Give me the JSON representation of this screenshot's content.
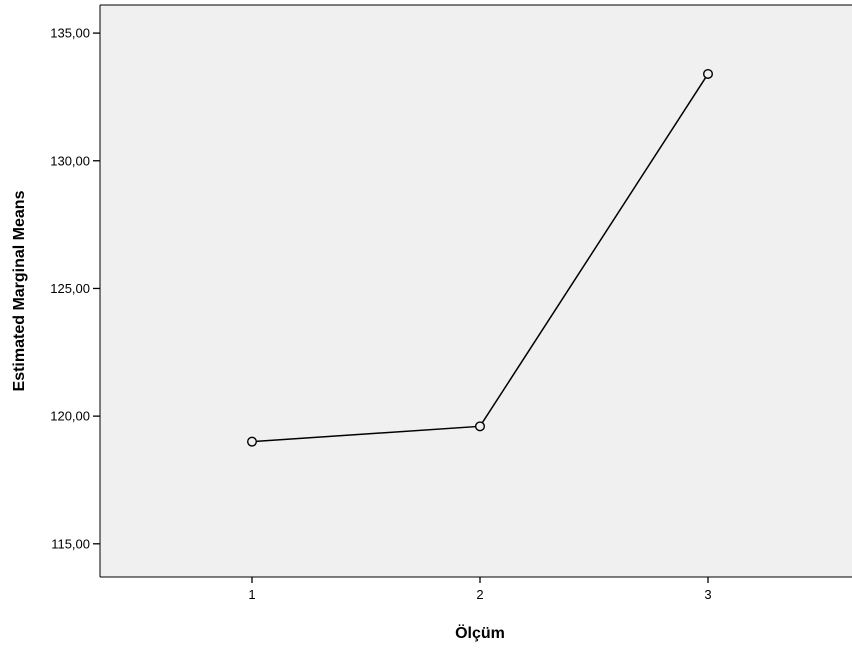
{
  "chart_data": {
    "type": "line",
    "xlabel": "Ölçüm",
    "ylabel": "Estimated Marginal Means",
    "categories": [
      "1",
      "2",
      "3"
    ],
    "series": [
      {
        "values": [
          119.0,
          119.6,
          133.4
        ]
      }
    ],
    "ylim": [
      113.7,
      136.1
    ],
    "yticks": [
      115,
      120,
      125,
      130,
      135
    ],
    "ytick_labels": [
      "115,00",
      "120,00",
      "125,00",
      "130,00",
      "135,00"
    ],
    "grid": false,
    "legend": "none",
    "colors": {
      "plot_background": "#f0f0f0",
      "line": "#000000",
      "marker_fill": "#f0f0f0",
      "frame": "#000000"
    }
  }
}
